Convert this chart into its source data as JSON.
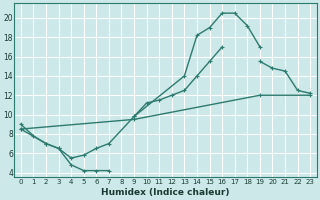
{
  "xlabel": "Humidex (Indice chaleur)",
  "background_color": "#cce8e8",
  "grid_color": "#ffffff",
  "line_color": "#2d7a6e",
  "xlim": [
    -0.5,
    23.5
  ],
  "ylim": [
    3.5,
    21.5
  ],
  "yticks": [
    4,
    6,
    8,
    10,
    12,
    14,
    16,
    18,
    20
  ],
  "xticks": [
    0,
    1,
    2,
    3,
    4,
    5,
    6,
    7,
    8,
    9,
    10,
    11,
    12,
    13,
    14,
    15,
    16,
    17,
    18,
    19,
    20,
    21,
    22,
    23
  ],
  "xtick_labels": [
    "0",
    "1",
    "2",
    "3",
    "4",
    "5",
    "6",
    "7",
    "8",
    "9",
    "10",
    "11",
    "12",
    "13",
    "14",
    "15",
    "16",
    "17",
    "18",
    "19",
    "20",
    "21",
    "22",
    "23"
  ],
  "curve1_segments": [
    {
      "x": [
        0,
        1,
        2,
        3,
        4,
        5,
        6,
        7
      ],
      "y": [
        9.0,
        7.8,
        7.0,
        6.5,
        4.8,
        4.2,
        4.2,
        4.2
      ]
    },
    {
      "x": [
        9,
        13,
        14,
        15,
        16,
        17,
        18,
        19
      ],
      "y": [
        9.8,
        14.0,
        18.2,
        19.0,
        20.5,
        20.5,
        19.2,
        17.0
      ]
    }
  ],
  "curve2_segments": [
    {
      "x": [
        0,
        2,
        3,
        4,
        5,
        6,
        7,
        9,
        10,
        11,
        12,
        13,
        14,
        15,
        16
      ],
      "y": [
        8.5,
        7.0,
        6.5,
        5.5,
        5.8,
        6.5,
        7.0,
        9.8,
        11.2,
        11.5,
        12.0,
        12.5,
        14.0,
        15.5,
        17.0
      ]
    },
    {
      "x": [
        19,
        20,
        21,
        22,
        23
      ],
      "y": [
        15.5,
        14.8,
        14.5,
        12.5,
        12.2
      ]
    }
  ],
  "curve3_x": [
    0,
    9,
    19,
    23
  ],
  "curve3_y": [
    8.5,
    9.5,
    12.0,
    12.0
  ]
}
